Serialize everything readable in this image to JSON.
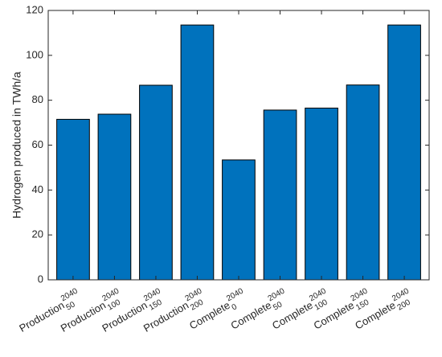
{
  "chart_data": {
    "type": "bar",
    "categories": [
      {
        "base": "Production",
        "sup": "2040",
        "sub": "50"
      },
      {
        "base": "Production",
        "sup": "2040",
        "sub": "100"
      },
      {
        "base": "Production",
        "sup": "2040",
        "sub": "150"
      },
      {
        "base": "Production",
        "sup": "2040",
        "sub": "200"
      },
      {
        "base": "Complete",
        "sup": "2040",
        "sub": "0"
      },
      {
        "base": "Complete",
        "sup": "2040",
        "sub": "50"
      },
      {
        "base": "Complete",
        "sup": "2040",
        "sub": "100"
      },
      {
        "base": "Complete",
        "sup": "2040",
        "sub": "150"
      },
      {
        "base": "Complete",
        "sup": "2040",
        "sub": "200"
      }
    ],
    "values": [
      71.5,
      73.8,
      86.7,
      113.5,
      53.4,
      75.6,
      76.5,
      86.8,
      113.5
    ],
    "ylabel": "Hydrogen produced in TWh/a",
    "xlabel": "",
    "ylim": [
      0,
      120
    ],
    "yticks": [
      "0",
      "20",
      "40",
      "60",
      "80",
      "100",
      "120"
    ],
    "grid": false,
    "bar_color": "#0072BD"
  }
}
